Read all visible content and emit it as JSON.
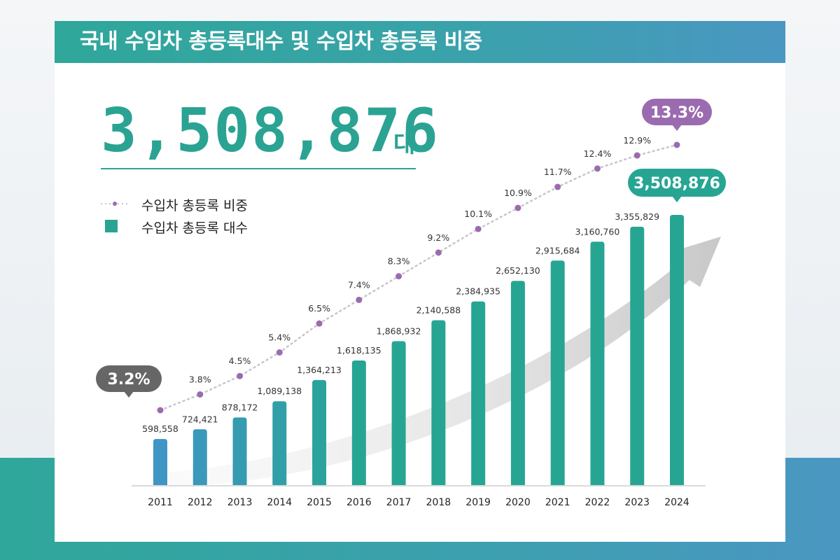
{
  "header": {
    "title": "국내 수입차 총등록대수 및 수입차 총등록 비중"
  },
  "counter": {
    "value": "3,508,876",
    "unit": "대"
  },
  "legend": {
    "share_label": "수입차 총등록 비중",
    "count_label": "수입차 총등록 대수"
  },
  "colors": {
    "bar_start": "#3f95c4",
    "bar_end": "#27a593",
    "line_dot": "#9b6bb0",
    "line_dash": "#c8c4cc",
    "callout_first": "#666666",
    "callout_last_share": "#9b6bb0",
    "callout_last_count": "#27a593"
  },
  "chart_data": {
    "type": "bar",
    "categories": [
      "2011",
      "2012",
      "2013",
      "2014",
      "2015",
      "2016",
      "2017",
      "2018",
      "2019",
      "2020",
      "2021",
      "2022",
      "2023",
      "2024"
    ],
    "series": [
      {
        "name": "수입차 총등록 대수",
        "type": "bar",
        "values": [
          598558,
          724421,
          878172,
          1089138,
          1364213,
          1618135,
          1868932,
          2140588,
          2384935,
          2652130,
          2915684,
          3160760,
          3355829,
          3508876
        ],
        "labels": [
          "598,558",
          "724,421",
          "878,172",
          "1,089,138",
          "1,364,213",
          "1,618,135",
          "1,868,932",
          "2,140,588",
          "2,384,935",
          "2,652,130",
          "2,915,684",
          "3,160,760",
          "3,355,829",
          "3,508,876"
        ]
      },
      {
        "name": "수입차 총등록 비중",
        "type": "line",
        "values": [
          3.2,
          3.8,
          4.5,
          5.4,
          6.5,
          7.4,
          8.3,
          9.2,
          10.1,
          10.9,
          11.7,
          12.4,
          12.9,
          13.3
        ],
        "labels": [
          "3.2%",
          "3.8%",
          "4.5%",
          "5.4%",
          "6.5%",
          "7.4%",
          "8.3%",
          "9.2%",
          "10.1%",
          "10.9%",
          "11.7%",
          "12.4%",
          "12.9%",
          "13.3%"
        ]
      }
    ],
    "ylim": [
      0,
      3508876
    ],
    "y2lim": [
      3.2,
      13.3
    ],
    "grid": false,
    "legend_position": "top-left",
    "title": "국내 수입차 총등록대수 및 수입차 총등록 비중",
    "xlabel": "",
    "ylabel": ""
  }
}
